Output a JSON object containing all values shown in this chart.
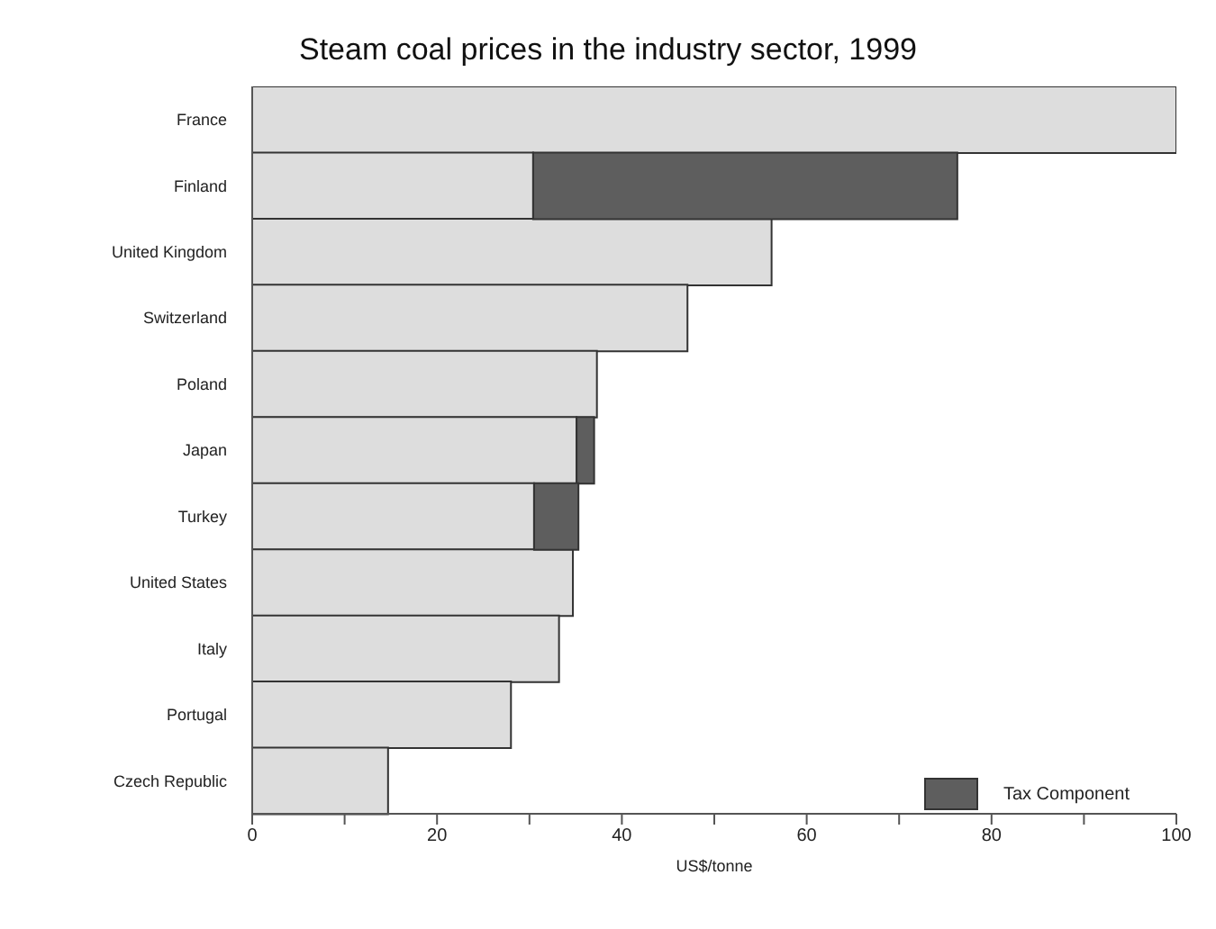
{
  "chart_data": {
    "type": "bar",
    "orientation": "horizontal",
    "stacked": true,
    "title": "Steam coal prices in the industry sector, 1999",
    "xlabel": "US$/tonne",
    "categories": [
      "France",
      "Finland",
      "United Kingdom",
      "Switzerland",
      "Poland",
      "Japan",
      "Turkey",
      "United States",
      "Italy",
      "Portugal",
      "Czech Republic"
    ],
    "series": [
      {
        "color": "#dddddd",
        "values": [
          100,
          30.4,
          56.2,
          47.1,
          37.3,
          35.1,
          30.5,
          34.7,
          33.2,
          28.0,
          14.7
        ]
      },
      {
        "name": "Tax Component",
        "color": "#5e5e5e",
        "values": [
          null,
          45.9,
          null,
          null,
          null,
          1.9,
          4.8,
          null,
          null,
          null,
          null
        ]
      }
    ],
    "xlim": [
      0,
      100
    ],
    "xticks": [
      0,
      {
        "value": 10,
        "label": null
      },
      20,
      {
        "value": 30,
        "label": null
      },
      40,
      {
        "value": 50,
        "label": null
      },
      60,
      {
        "value": 70,
        "label": null
      },
      80,
      {
        "value": 90,
        "label": null
      },
      100
    ],
    "grid": false,
    "legend": "bottom right"
  }
}
